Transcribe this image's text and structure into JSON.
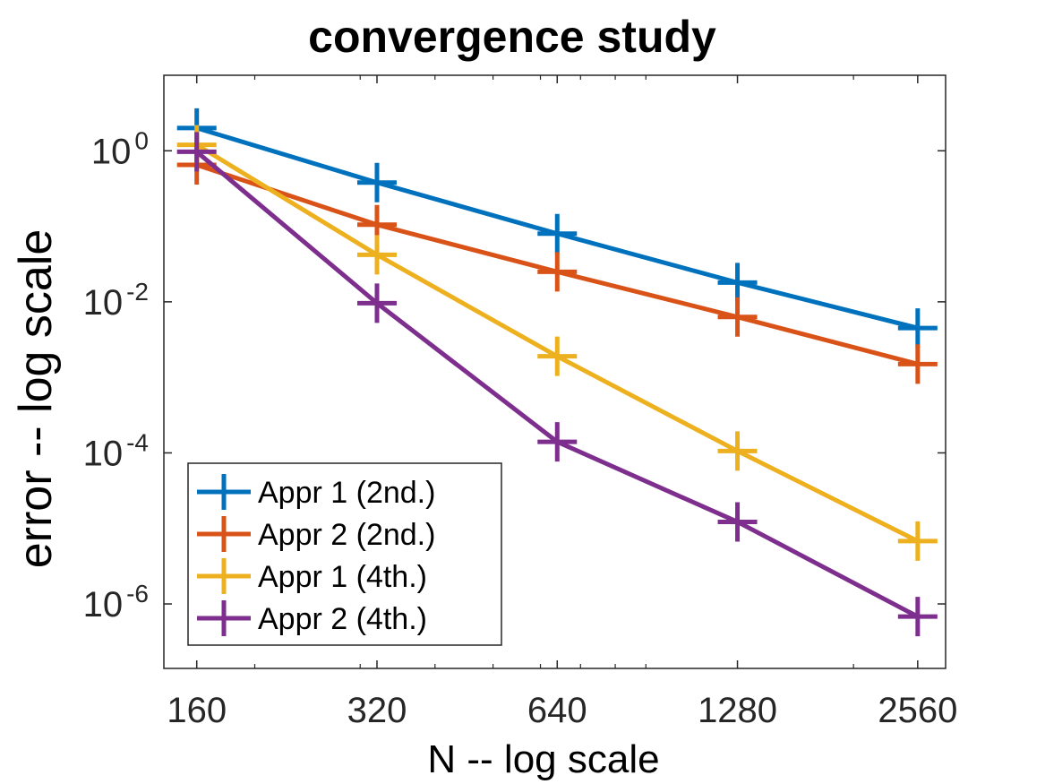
{
  "chart_data": {
    "type": "line",
    "title": "convergence study",
    "xlabel": "N -- log scale",
    "ylabel": "error -- log scale",
    "x_scale": "log",
    "y_scale": "log",
    "xlim": [
      141,
      2850
    ],
    "ylim": [
      1.4e-07,
      10
    ],
    "x": [
      160,
      320,
      640,
      1280,
      2560
    ],
    "x_tick_labels": [
      "160",
      "320",
      "640",
      "1280",
      "2560"
    ],
    "y_ticks": [
      {
        "value": 1,
        "base": "10",
        "exp": "0"
      },
      {
        "value": 0.01,
        "base": "10",
        "exp": "-2"
      },
      {
        "value": 0.0001,
        "base": "10",
        "exp": "-4"
      },
      {
        "value": 1e-06,
        "base": "10",
        "exp": "-6"
      }
    ],
    "grid": false,
    "legend_position": "bottom-left",
    "marker": "plus",
    "series": [
      {
        "name": "Appr 1 (2nd.)",
        "color": "#0072bd",
        "values": [
          2.0,
          0.38,
          0.08,
          0.018,
          0.0045
        ]
      },
      {
        "name": "Appr 2 (2nd.)",
        "color": "#d95319",
        "values": [
          0.65,
          0.105,
          0.025,
          0.0063,
          0.0015
        ]
      },
      {
        "name": "Appr 1 (4th.)",
        "color": "#edb120",
        "values": [
          1.2,
          0.042,
          0.0019,
          0.000106,
          6.8e-06
        ]
      },
      {
        "name": "Appr 2 (4th.)",
        "color": "#7e2f8e",
        "values": [
          0.97,
          0.0096,
          0.00014,
          1.22e-05,
          6.8e-07
        ]
      }
    ]
  }
}
